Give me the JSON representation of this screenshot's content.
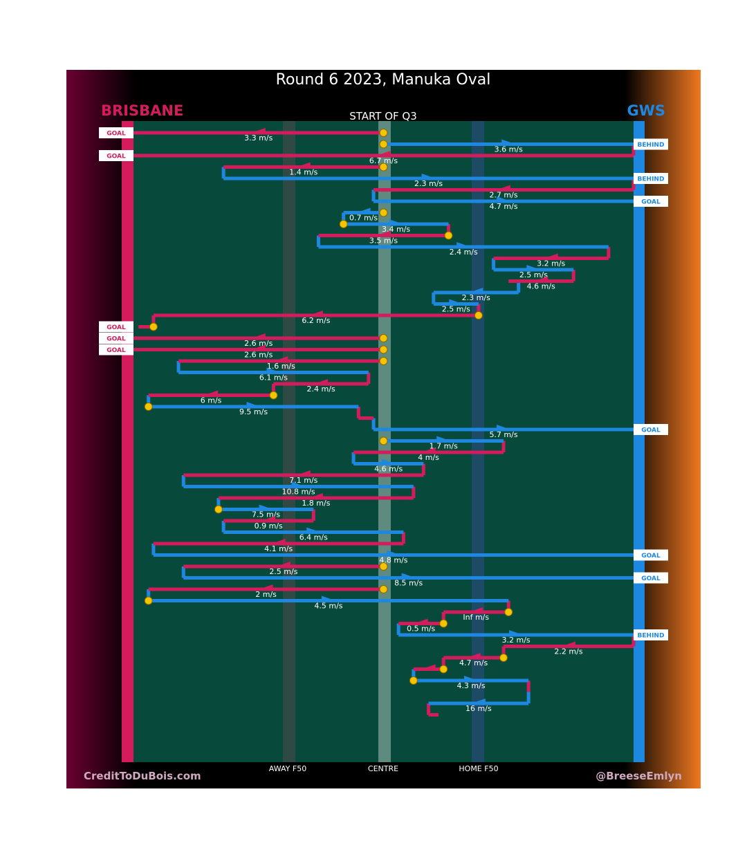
{
  "title": "Round 6 2023, Manuka Oval",
  "subtitle": "START OF Q3",
  "teams": {
    "left": {
      "name": "BRISBANE",
      "color": "#d41c5c"
    },
    "right": {
      "name": "GWS",
      "color": "#1e88e0"
    }
  },
  "axis_labels": {
    "away": "AWAY F50",
    "centre": "CENTRE",
    "home": "HOME F50"
  },
  "credits": {
    "left": "CreditToDuBois.com",
    "right": "@BreeseEmlyn"
  },
  "colors": {
    "field": "#074a3c",
    "brisbane": "#d41c5c",
    "gws": "#1e88e0",
    "ball": "#f5c400"
  },
  "chart_data": {
    "type": "chain_trace",
    "x_scale": "ground position, 0 = Brisbane goal line, 1 = GWS goal line",
    "reference_lines": {
      "away_f50": 0.31,
      "centre": 0.5,
      "home_f50": 0.69
    },
    "segments": [
      {
        "team": "BRI",
        "dir": -1,
        "x": [
          0.5,
          0.0
        ],
        "speed": "3.3 m/s",
        "outcome": "GOAL",
        "start_ball": true
      },
      {
        "team": "GWS",
        "dir": 1,
        "x": [
          0.5,
          1.0
        ],
        "speed": "3.6 m/s",
        "outcome": "BEHIND",
        "start_ball": true
      },
      {
        "team": "BRI",
        "dir": -1,
        "x": [
          1.0,
          0.0
        ],
        "speed": "6.7 m/s",
        "outcome": "GOAL",
        "start_ball": false
      },
      {
        "team": "BRI",
        "dir": -1,
        "x": [
          0.5,
          0.18
        ],
        "speed": "1.4 m/s",
        "outcome": "",
        "start_ball": true
      },
      {
        "team": "GWS",
        "dir": 1,
        "x": [
          0.18,
          1.0
        ],
        "speed": "2.3 m/s",
        "outcome": "BEHIND",
        "start_ball": false
      },
      {
        "team": "BRI",
        "dir": -1,
        "x": [
          1.0,
          0.48
        ],
        "speed": "2.7 m/s",
        "outcome": "",
        "start_ball": false
      },
      {
        "team": "GWS",
        "dir": 1,
        "x": [
          0.48,
          1.0
        ],
        "speed": "4.7 m/s",
        "outcome": "GOAL",
        "start_ball": false
      },
      {
        "team": "GWS",
        "dir": -1,
        "x": [
          0.5,
          0.42
        ],
        "speed": "0.7 m/s",
        "outcome": "",
        "start_ball": true
      },
      {
        "team": "GWS",
        "dir": 1,
        "x": [
          0.42,
          0.63
        ],
        "speed": "3.4 m/s",
        "outcome": "",
        "start_ball": true
      },
      {
        "team": "BRI",
        "dir": -1,
        "x": [
          0.63,
          0.37
        ],
        "speed": "3.5 m/s",
        "outcome": "",
        "start_ball": true
      },
      {
        "team": "GWS",
        "dir": 1,
        "x": [
          0.37,
          0.95
        ],
        "speed": "2.4 m/s",
        "outcome": "",
        "start_ball": false
      },
      {
        "team": "BRI",
        "dir": -1,
        "x": [
          0.95,
          0.72
        ],
        "speed": "3.2 m/s",
        "outcome": "",
        "start_ball": false
      },
      {
        "team": "GWS",
        "dir": 1,
        "x": [
          0.72,
          0.88
        ],
        "speed": "2.5 m/s",
        "outcome": "",
        "start_ball": false
      },
      {
        "team": "BRI",
        "dir": -1,
        "x": [
          0.88,
          0.75
        ],
        "speed": "4.6 m/s",
        "outcome": "",
        "start_ball": false
      },
      {
        "team": "GWS",
        "dir": -1,
        "x": [
          0.77,
          0.6
        ],
        "speed": "2.3 m/s",
        "outcome": "",
        "start_ball": false
      },
      {
        "team": "GWS",
        "dir": 1,
        "x": [
          0.6,
          0.69
        ],
        "speed": "2.5 m/s",
        "outcome": "",
        "start_ball": false
      },
      {
        "team": "BRI",
        "dir": -1,
        "x": [
          0.69,
          0.04
        ],
        "speed": "6.2 m/s",
        "outcome": "",
        "start_ball": true
      },
      {
        "team": "BRI",
        "dir": -1,
        "x": [
          0.04,
          0.01
        ],
        "speed": "",
        "outcome": "GOAL",
        "start_ball": true
      },
      {
        "team": "BRI",
        "dir": -1,
        "x": [
          0.5,
          0.0
        ],
        "speed": "2.6 m/s",
        "outcome": "GOAL",
        "start_ball": true
      },
      {
        "team": "BRI",
        "dir": -1,
        "x": [
          0.5,
          0.0
        ],
        "speed": "2.6 m/s",
        "outcome": "GOAL",
        "start_ball": true
      },
      {
        "team": "BRI",
        "dir": -1,
        "x": [
          0.5,
          0.09
        ],
        "speed": "1.6 m/s",
        "outcome": "",
        "start_ball": true
      },
      {
        "team": "GWS",
        "dir": 1,
        "x": [
          0.09,
          0.47
        ],
        "speed": "6.1 m/s",
        "outcome": "",
        "start_ball": false
      },
      {
        "team": "BRI",
        "dir": -1,
        "x": [
          0.47,
          0.28
        ],
        "speed": "2.4 m/s",
        "outcome": "",
        "start_ball": false
      },
      {
        "team": "BRI",
        "dir": -1,
        "x": [
          0.28,
          0.03
        ],
        "speed": "6 m/s",
        "outcome": "",
        "start_ball": true
      },
      {
        "team": "GWS",
        "dir": 1,
        "x": [
          0.03,
          0.45
        ],
        "speed": "9.5 m/s",
        "outcome": "",
        "start_ball": true
      },
      {
        "team": "BRI",
        "dir": 1,
        "x": [
          0.45,
          0.48
        ],
        "speed": "",
        "outcome": "",
        "start_ball": false
      },
      {
        "team": "GWS",
        "dir": 1,
        "x": [
          0.48,
          1.0
        ],
        "speed": "5.7 m/s",
        "outcome": "GOAL",
        "start_ball": false
      },
      {
        "team": "GWS",
        "dir": 1,
        "x": [
          0.5,
          0.74
        ],
        "speed": "1.7 m/s",
        "outcome": "",
        "start_ball": true
      },
      {
        "team": "BRI",
        "dir": -1,
        "x": [
          0.74,
          0.44
        ],
        "speed": "4 m/s",
        "outcome": "",
        "start_ball": false
      },
      {
        "team": "GWS",
        "dir": 1,
        "x": [
          0.44,
          0.58
        ],
        "speed": "4.6 m/s",
        "outcome": "",
        "start_ball": false
      },
      {
        "team": "BRI",
        "dir": -1,
        "x": [
          0.58,
          0.1
        ],
        "speed": "7.1 m/s",
        "outcome": "",
        "start_ball": false
      },
      {
        "team": "GWS",
        "dir": 1,
        "x": [
          0.1,
          0.56
        ],
        "speed": "10.8 m/s",
        "outcome": "",
        "start_ball": false
      },
      {
        "team": "BRI",
        "dir": -1,
        "x": [
          0.56,
          0.17
        ],
        "speed": "1.8 m/s",
        "outcome": "",
        "start_ball": false
      },
      {
        "team": "GWS",
        "dir": 1,
        "x": [
          0.17,
          0.36
        ],
        "speed": "7.5 m/s",
        "outcome": "",
        "start_ball": true
      },
      {
        "team": "BRI",
        "dir": -1,
        "x": [
          0.36,
          0.18
        ],
        "speed": "0.9 m/s",
        "outcome": "",
        "start_ball": false
      },
      {
        "team": "GWS",
        "dir": 1,
        "x": [
          0.18,
          0.54
        ],
        "speed": "6.4 m/s",
        "outcome": "",
        "start_ball": false
      },
      {
        "team": "BRI",
        "dir": -1,
        "x": [
          0.54,
          0.04
        ],
        "speed": "4.1 m/s",
        "outcome": "",
        "start_ball": false
      },
      {
        "team": "GWS",
        "dir": 1,
        "x": [
          0.04,
          1.0
        ],
        "speed": "4.8 m/s",
        "outcome": "GOAL",
        "start_ball": false
      },
      {
        "team": "BRI",
        "dir": -1,
        "x": [
          0.5,
          0.1
        ],
        "speed": "2.5 m/s",
        "outcome": "",
        "start_ball": true
      },
      {
        "team": "GWS",
        "dir": 1,
        "x": [
          0.1,
          1.0
        ],
        "speed": "8.5 m/s",
        "outcome": "GOAL",
        "start_ball": false
      },
      {
        "team": "BRI",
        "dir": -1,
        "x": [
          0.5,
          0.03
        ],
        "speed": "2 m/s",
        "outcome": "",
        "start_ball": true
      },
      {
        "team": "GWS",
        "dir": 1,
        "x": [
          0.03,
          0.75
        ],
        "speed": "4.5 m/s",
        "outcome": "",
        "start_ball": true
      },
      {
        "team": "BRI",
        "dir": -1,
        "x": [
          0.75,
          0.62
        ],
        "speed": "Inf m/s",
        "outcome": "",
        "start_ball": true
      },
      {
        "team": "BRI",
        "dir": -1,
        "x": [
          0.62,
          0.53
        ],
        "speed": "0.5 m/s",
        "outcome": "",
        "start_ball": true
      },
      {
        "team": "GWS",
        "dir": 1,
        "x": [
          0.53,
          1.0
        ],
        "speed": "3.2 m/s",
        "outcome": "BEHIND",
        "start_ball": false
      },
      {
        "team": "BRI",
        "dir": -1,
        "x": [
          1.0,
          0.74
        ],
        "speed": "2.2 m/s",
        "outcome": "",
        "start_ball": false
      },
      {
        "team": "BRI",
        "dir": -1,
        "x": [
          0.74,
          0.62
        ],
        "speed": "4.7 m/s",
        "outcome": "",
        "start_ball": true
      },
      {
        "team": "BRI",
        "dir": -1,
        "x": [
          0.62,
          0.56
        ],
        "speed": "",
        "outcome": "",
        "start_ball": true
      },
      {
        "team": "GWS",
        "dir": 1,
        "x": [
          0.56,
          0.79
        ],
        "speed": "4.3 m/s",
        "outcome": "",
        "start_ball": true
      },
      {
        "team": "BRI",
        "dir": -1,
        "x": [
          0.79,
          0.79
        ],
        "speed": "",
        "outcome": "",
        "start_ball": false
      },
      {
        "team": "GWS",
        "dir": -1,
        "x": [
          0.79,
          0.59
        ],
        "speed": "16 m/s",
        "outcome": "",
        "start_ball": false
      },
      {
        "team": "BRI",
        "dir": 1,
        "x": [
          0.59,
          0.61
        ],
        "speed": "",
        "outcome": "",
        "start_ball": false
      }
    ]
  }
}
